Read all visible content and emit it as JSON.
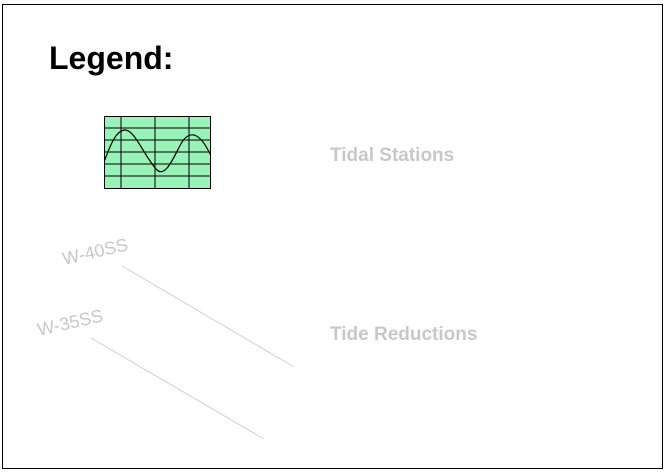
{
  "slide": {
    "title": "Legend:",
    "items": [
      {
        "label": "Tidal Stations",
        "icon": "tide-graph-icon"
      },
      {
        "label": "Tide Reductions"
      }
    ],
    "line_labels": [
      "W-40SS",
      "W-35SS"
    ]
  },
  "colors": {
    "icon_fill": "#99f2b8",
    "label_gray": "#c8c8c8",
    "line_gray": "#d0d0d0"
  }
}
